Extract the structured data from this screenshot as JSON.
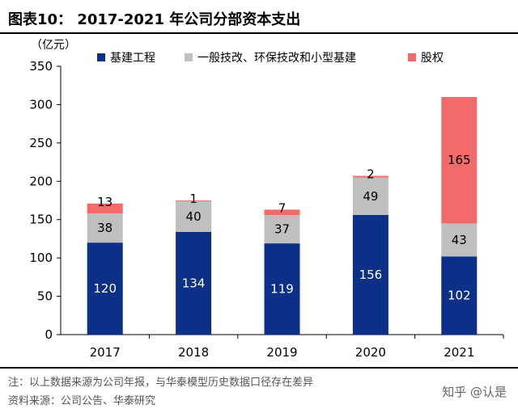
{
  "figure": {
    "title": "图表10： 2017-2021 年公司分部资本支出",
    "note": "注：以上数据来源为公司年报，与华泰模型历史数据口径存在差异",
    "source": "资料来源：公司公告、华泰研究",
    "watermark": "知乎 @认是"
  },
  "chart_data": {
    "type": "bar",
    "stacked": true,
    "ylabel": "（亿元）",
    "ylim": [
      0,
      350
    ],
    "yticks": [
      0,
      50,
      100,
      150,
      200,
      250,
      300,
      350
    ],
    "grid": false,
    "legend_position": "top",
    "categories": [
      "2017",
      "2018",
      "2019",
      "2020",
      "2021"
    ],
    "series": [
      {
        "name": "基建工程",
        "color": "#0c2f87",
        "values": [
          120,
          134,
          119,
          156,
          102
        ]
      },
      {
        "name": "一般技改、环保技改和小型基建",
        "color": "#bfbfbf",
        "values": [
          38,
          40,
          37,
          49,
          43
        ]
      },
      {
        "name": "股权",
        "color": "#f26b68",
        "values": [
          13,
          1,
          7,
          2,
          165
        ]
      }
    ]
  }
}
